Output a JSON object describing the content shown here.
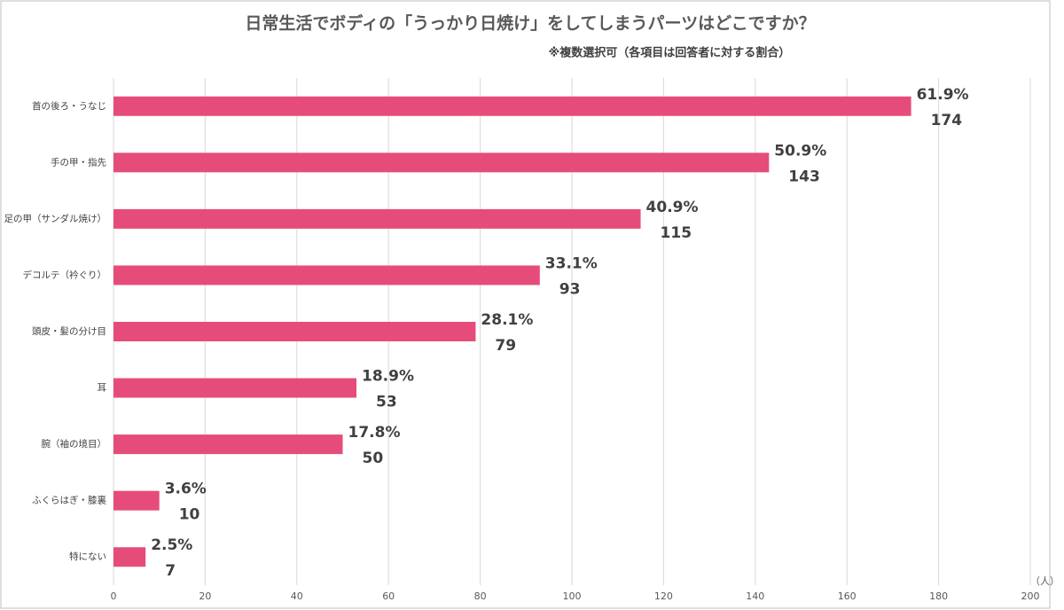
{
  "chart_data": {
    "type": "hbar",
    "title": "日常生活でボディの「うっかり日焼け」をしてしまうパーツはどこですか？",
    "subtitle": "※複数選択可（各項目は回答者に対する割合）",
    "x_unit_label": "（人）",
    "categories": [
      "首の後ろ・うなじ",
      "手の甲・指先",
      "足の甲（サンダル焼け）",
      "デコルテ（衿ぐり）",
      "頭皮・髪の分け目",
      "耳",
      "腕（袖の境目）",
      "ふくらはぎ・膝裏",
      "特にない"
    ],
    "values": [
      174,
      143,
      115,
      93,
      79,
      53,
      50,
      10,
      7
    ],
    "percent_labels": [
      "61.9%",
      "50.9%",
      "40.9%",
      "33.1%",
      "28.1%",
      "18.9%",
      "17.8%",
      "3.6%",
      "2.5%"
    ],
    "color": "#e64c7a",
    "xlim": [
      0,
      200
    ],
    "xticks": [
      0,
      20,
      40,
      60,
      80,
      100,
      120,
      140,
      160,
      180,
      200
    ],
    "grid": true
  }
}
